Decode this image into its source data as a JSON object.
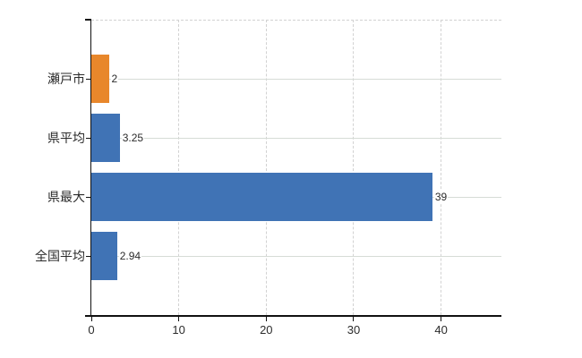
{
  "chart_data": {
    "type": "bar",
    "orientation": "horizontal",
    "title": "",
    "categories": [
      "瀬戸市",
      "県平均",
      "県最大",
      "全国平均"
    ],
    "values": [
      2,
      3.25,
      39,
      2.94
    ],
    "value_labels": [
      "2",
      "3.25",
      "39",
      "2.94"
    ],
    "bar_colors": [
      "#e8872b",
      "#4073b5",
      "#4073b5",
      "#4073b5"
    ],
    "xtick_labels": [
      "0",
      "10",
      "20",
      "30",
      "40"
    ],
    "xtick_values": [
      0,
      10,
      20,
      30,
      40
    ],
    "xlim": [
      0,
      46.9
    ],
    "ylabel": "",
    "xlabel": "",
    "legend": "none",
    "grid": {
      "vertical_style": "dashed",
      "horizontal_style": "solid",
      "top_border_style": "dashed"
    },
    "colors": {
      "bar_blue": "#4073b5",
      "bar_orange": "#e8872b",
      "grid_dashed": "#d2d2d2",
      "grid_solid": "#d6dcd6",
      "axis": "#111111",
      "text": "#2b2b2b",
      "background": "#ffffff"
    }
  }
}
